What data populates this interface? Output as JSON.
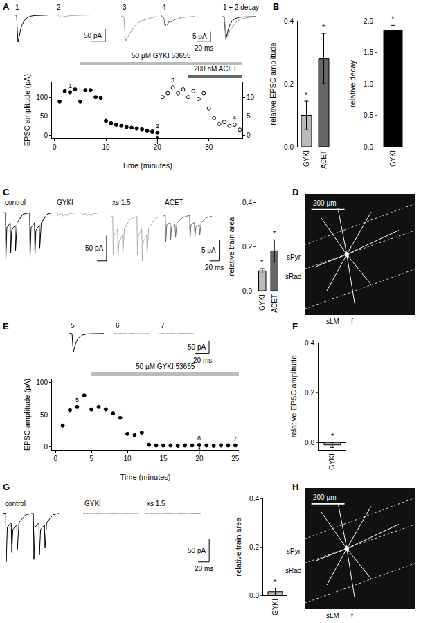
{
  "chart_data": [
    {
      "type": "line",
      "panel": "A",
      "title": "1",
      "x": [
        0,
        2,
        4,
        5,
        6,
        7,
        8,
        10,
        12,
        15,
        20,
        25,
        30,
        40,
        50
      ],
      "values": [
        0,
        0,
        0,
        -60,
        -105,
        -95,
        -80,
        -55,
        -38,
        -22,
        -9,
        -4,
        -2,
        -1,
        0
      ],
      "color": "#000000",
      "xlim": [
        0,
        50
      ],
      "ylim": [
        -110,
        10
      ],
      "tick_labels": false
    },
    {
      "type": "line",
      "panel": "A",
      "title": "2",
      "x": [
        0,
        2,
        4,
        5,
        6,
        7,
        8,
        10,
        12,
        15,
        20,
        25,
        30,
        40,
        50
      ],
      "values": [
        0,
        0,
        0,
        -3,
        -8,
        -9,
        -8,
        -7,
        -6,
        -5,
        -3,
        -2,
        -1,
        -0.5,
        0
      ],
      "color": "#aaaaaa",
      "xlim": [
        0,
        75
      ],
      "ylim": [
        -110,
        10
      ],
      "tick_labels": false,
      "scalebar": {
        "x": 20,
        "y": 50,
        "y_label": "50 pA"
      }
    },
    {
      "type": "line",
      "panel": "A",
      "title": "3",
      "x": [
        0,
        2,
        4,
        5,
        6,
        7,
        8,
        10,
        12,
        15,
        20,
        25,
        30,
        40,
        50
      ],
      "values": [
        0,
        0.3,
        -0.2,
        -5,
        -11,
        -12,
        -11,
        -10,
        -8.5,
        -7,
        -4.5,
        -3,
        -2,
        -1,
        0
      ],
      "color": "#999999",
      "xlim": [
        0,
        50
      ],
      "ylim": [
        -13,
        2
      ],
      "tick_labels": false
    },
    {
      "type": "line",
      "panel": "A",
      "title": "4",
      "x": [
        0,
        2,
        4,
        5,
        6,
        7,
        8,
        10,
        12,
        15,
        20,
        25,
        30,
        40,
        50
      ],
      "values": [
        0,
        0.4,
        -0.3,
        -1.5,
        -4,
        -4.5,
        -3.5,
        -4,
        -2.5,
        -2.8,
        -1.5,
        -1.2,
        -0.4,
        -0.3,
        0
      ],
      "color": "#666666",
      "xlim": [
        0,
        75
      ],
      "ylim": [
        -13,
        2
      ],
      "tick_labels": false,
      "scalebar": {
        "x": 20,
        "y": 5,
        "y_label": "5 pA",
        "x_label": "20 ms"
      }
    },
    {
      "type": "line",
      "panel": "A",
      "title": "1 + 2 decay",
      "x": [
        0,
        2,
        4,
        5,
        6,
        7,
        8,
        10,
        12,
        15,
        20,
        25,
        30,
        40,
        50
      ],
      "series": [
        {
          "color": "#000000",
          "values": [
            0,
            0,
            0,
            -6,
            -11,
            -10,
            -8.5,
            -6,
            -4,
            -2.3,
            -1,
            -0.4,
            -0.2,
            -0.1,
            0
          ]
        },
        {
          "color": "#999999",
          "values": [
            0,
            0.2,
            -0.1,
            -4,
            -11,
            -10.5,
            -10,
            -8.5,
            -7,
            -5.5,
            -3,
            -1.8,
            -1,
            -0.4,
            0
          ]
        }
      ],
      "xlim": [
        0,
        50
      ],
      "ylim": [
        -13,
        2
      ],
      "tick_labels": false
    },
    {
      "type": "scatter",
      "panel": "A",
      "x_label": "Time (minutes)",
      "y_label": "EPSC amplitude (pA)",
      "xlim": [
        -0.5,
        36.5
      ],
      "xticks": [
        0,
        10,
        20,
        30
      ],
      "ylim": [
        -8,
        140
      ],
      "yticks": [
        0,
        50,
        100
      ],
      "y2lim": [
        -0.8,
        14
      ],
      "y2ticks": [
        0,
        5,
        10
      ],
      "series": [
        {
          "x": [
            1,
            2,
            3,
            4,
            5,
            6,
            7,
            8,
            9,
            10,
            11,
            12,
            13,
            14,
            15,
            16,
            17,
            18,
            19,
            20
          ],
          "values": [
            88,
            115,
            112,
            120,
            88,
            118,
            118,
            100,
            98,
            38,
            32,
            28,
            25,
            22,
            20,
            18,
            16,
            12,
            10,
            7
          ],
          "marker": "filled",
          "color": "#000000"
        },
        {
          "axis": "y2",
          "x": [
            21,
            22,
            23,
            24,
            25,
            26,
            27,
            28,
            29,
            30,
            31,
            32,
            33,
            34,
            35,
            36
          ],
          "values": [
            10,
            11,
            12.5,
            11,
            12,
            10,
            11.5,
            9.5,
            11,
            7,
            4.5,
            3,
            3.5,
            2.5,
            2.8,
            1.5
          ],
          "marker": "open",
          "color": "#000000"
        }
      ],
      "annotations": [
        {
          "x": 3,
          "y": 112,
          "text": "1"
        },
        {
          "x": 20,
          "y": 7,
          "text": "2"
        },
        {
          "x": 23,
          "y": 12.5,
          "text": "3",
          "axis": "y2"
        },
        {
          "x": 35,
          "y": 2.8,
          "text": "4",
          "axis": "y2"
        }
      ],
      "arrows": [
        {
          "x": 20,
          "y": 0
        }
      ],
      "drug_bars": [
        {
          "label": "50 µM GYKI 53655",
          "start": 5,
          "end": 36.5,
          "color": "#bbbbbb"
        },
        {
          "label": "200 nM ACET",
          "start": 26,
          "end": 36.5,
          "color": "#666666"
        }
      ]
    },
    {
      "type": "bar",
      "panel": "B",
      "y_label": "relative EPSC amplitude",
      "categories": [
        "GYKI",
        "ACET"
      ],
      "values": [
        0.1,
        0.28
      ],
      "errors": [
        0.045,
        0.08
      ],
      "colors": [
        "#bbbbbb",
        "#666666"
      ],
      "ylim": [
        0,
        0.4
      ],
      "yticks": [
        {
          "value": 0,
          "label": "0.0"
        },
        0.2,
        0.4
      ],
      "significance": [
        "*",
        "*"
      ]
    },
    {
      "type": "bar",
      "panel": "B",
      "y_label": "relative decay",
      "categories": [
        "GYKI"
      ],
      "values": [
        1.85
      ],
      "errors": [
        0.08
      ],
      "colors": [
        "#000000"
      ],
      "ylim": [
        0,
        2
      ],
      "yticks": [
        {
          "value": 0,
          "label": "0.0"
        },
        0.5,
        {
          "value": 1,
          "label": "1.0"
        },
        1.5,
        {
          "value": 2,
          "label": "2.0"
        }
      ],
      "significance": [
        "*"
      ]
    },
    {
      "type": "line",
      "panel": "C",
      "title": "control",
      "x": [
        0,
        4,
        5,
        7,
        14,
        15,
        17,
        24,
        25,
        28,
        40,
        54,
        55,
        57,
        64,
        65,
        67,
        74,
        75,
        78,
        90,
        100
      ],
      "values": [
        0,
        0,
        -95,
        -30,
        -20,
        -80,
        -35,
        -25,
        -75,
        -20,
        -3,
        0,
        -90,
        -30,
        -20,
        -85,
        -35,
        -25,
        -70,
        -20,
        -3,
        0
      ],
      "color": "#000000",
      "xlim": [
        0,
        100
      ],
      "ylim": [
        -100,
        10
      ],
      "tick_labels": false
    },
    {
      "type": "line",
      "panel": "C",
      "title": "GYKI",
      "x": [
        0,
        4,
        5,
        7,
        14,
        15,
        17,
        24,
        25,
        28,
        40,
        54,
        55,
        57,
        64,
        65,
        67,
        74,
        75,
        78,
        90,
        100
      ],
      "values": [
        0,
        0,
        -6,
        -3,
        -2,
        -7,
        -4,
        -3,
        -6,
        -2,
        -0.5,
        0,
        -6,
        -3,
        -2,
        -7,
        -4,
        -3,
        -6,
        -2,
        -0.5,
        0
      ],
      "color": "#aaaaaa",
      "xlim": [
        0,
        110
      ],
      "ylim": [
        -100,
        10
      ],
      "tick_labels": false,
      "scalebar": {
        "x": 20,
        "y": 50,
        "y_label": "50 pA"
      }
    },
    {
      "type": "line",
      "panel": "C",
      "title": "xs 1.5",
      "x": [
        0,
        4,
        5,
        7,
        14,
        15,
        17,
        24,
        25,
        28,
        40,
        54,
        55,
        57,
        64,
        65,
        67,
        74,
        75,
        78,
        90,
        100
      ],
      "values": [
        0,
        0,
        -9,
        -4.5,
        -3,
        -10,
        -6,
        -4.5,
        -9,
        -3,
        -0.7,
        0,
        -9,
        -4.5,
        -3,
        -10.5,
        -6,
        -4.5,
        -9,
        -3,
        -0.7,
        0
      ],
      "color": "#aaaaaa",
      "xlim": [
        0,
        100
      ],
      "ylim": [
        -11,
        2
      ],
      "tick_labels": false
    },
    {
      "type": "line",
      "panel": "C",
      "title": "ACET",
      "x": [
        0,
        4,
        5,
        7,
        14,
        15,
        17,
        24,
        25,
        28,
        40,
        54,
        55,
        57,
        64,
        65,
        67,
        74,
        75,
        78,
        90,
        100
      ],
      "values": [
        0,
        0.3,
        -6,
        -2,
        -1.5,
        -5.5,
        -2.5,
        -2,
        -5,
        -1.5,
        -0.3,
        0.2,
        -5.5,
        -2,
        -1.5,
        -5,
        -2.5,
        -2,
        -4.5,
        -1.5,
        -0.3,
        0
      ],
      "color": "#666666",
      "xlim": [
        0,
        120
      ],
      "ylim": [
        -11,
        2
      ],
      "tick_labels": false,
      "scalebar": {
        "x": 20,
        "y": 5,
        "y_label": "5 pA",
        "x_label": "20 ms"
      }
    },
    {
      "type": "bar",
      "panel": "C",
      "y_label": "relative train area",
      "categories": [
        "GYKI",
        "ACET"
      ],
      "values": [
        0.09,
        0.18
      ],
      "errors": [
        0.01,
        0.05
      ],
      "colors": [
        "#bbbbbb",
        "#666666"
      ],
      "ylim": [
        0,
        0.4
      ],
      "yticks": [
        {
          "value": 0,
          "label": "0.0"
        },
        0.2,
        0.4
      ],
      "significance": [
        "*",
        "*"
      ]
    },
    {
      "type": "image",
      "panel": "D",
      "scale_label": "200 µm",
      "labels": [
        "sPyr",
        "sRad",
        "sLM",
        "f"
      ]
    },
    {
      "type": "line",
      "panel": "E",
      "title": "5",
      "x": [
        0,
        2,
        4,
        5,
        6,
        7,
        8,
        10,
        12,
        15,
        20,
        25,
        30,
        40,
        50
      ],
      "values": [
        0,
        0,
        0,
        -40,
        -70,
        -60,
        -48,
        -32,
        -22,
        -13,
        -5,
        -2,
        -1,
        -0.5,
        0
      ],
      "color": "#000000",
      "xlim": [
        0,
        50
      ],
      "ylim": [
        -80,
        10
      ],
      "tick_labels": false
    },
    {
      "type": "line",
      "panel": "E",
      "title": "6",
      "x": [
        0,
        2,
        4,
        5,
        6,
        7,
        8,
        10,
        12,
        15,
        20,
        25,
        30,
        40,
        50
      ],
      "values": [
        0,
        1,
        -1,
        0.5,
        -1.5,
        1,
        -0.5,
        1,
        -1,
        0.5,
        -1,
        1,
        -0.5,
        0.5,
        0
      ],
      "color": "#aaaaaa",
      "xlim": [
        0,
        50
      ],
      "ylim": [
        -80,
        10
      ],
      "tick_labels": false
    },
    {
      "type": "line",
      "panel": "E",
      "title": "7",
      "x": [
        0,
        2,
        4,
        5,
        6,
        7,
        8,
        10,
        12,
        15,
        20,
        25,
        30,
        40,
        50
      ],
      "values": [
        0,
        -1,
        1,
        -0.5,
        1,
        -1.5,
        0.5,
        -1,
        1,
        -0.5,
        1,
        -1,
        0.5,
        -0.5,
        0
      ],
      "color": "#aaaaaa",
      "xlim": [
        0,
        75
      ],
      "ylim": [
        -80,
        10
      ],
      "tick_labels": false,
      "scalebar": {
        "x": 20,
        "y": 50,
        "y_label": "50 pA",
        "x_label": "20 ms"
      }
    },
    {
      "type": "scatter",
      "panel": "E",
      "x_label": "Time (minutes)",
      "y_label": "EPSC amplitude (pA)",
      "xlim": [
        -0.5,
        25.5
      ],
      "xticks": [
        0,
        5,
        10,
        15,
        20,
        25
      ],
      "ylim": [
        -5,
        105
      ],
      "yticks": [
        0,
        50,
        100
      ],
      "series": [
        {
          "x": [
            1,
            2,
            3,
            4,
            5,
            6,
            7,
            8,
            9,
            10,
            11,
            12,
            13,
            14,
            15,
            16,
            17,
            18,
            19,
            20,
            21,
            22,
            23,
            24,
            25
          ],
          "values": [
            33,
            57,
            62,
            80,
            58,
            62,
            58,
            52,
            45,
            20,
            18,
            22,
            3,
            2,
            2,
            2,
            1.5,
            2,
            2,
            2.5,
            2,
            1.5,
            2,
            2,
            2
          ],
          "marker": "filled",
          "color": "#000000"
        }
      ],
      "annotations": [
        {
          "x": 3,
          "y": 62,
          "text": "5"
        },
        {
          "x": 20,
          "y": 2.5,
          "text": "6"
        },
        {
          "x": 25,
          "y": 2,
          "text": "7"
        }
      ],
      "arrows": [
        {
          "x": 20,
          "y": 0
        }
      ],
      "drug_bars": [
        {
          "label": "50 µM GYKI 53655",
          "start": 5,
          "end": 25.5,
          "color": "#bbbbbb"
        }
      ]
    },
    {
      "type": "bar",
      "panel": "F",
      "y_label": "relative EPSC amplitude",
      "categories": [
        "GYKI"
      ],
      "values": [
        -0.01
      ],
      "errors": [
        0.01
      ],
      "colors": [
        "#bbbbbb"
      ],
      "ylim": [
        -0.03,
        0.4
      ],
      "yticks": [
        {
          "value": 0,
          "label": "0.0"
        },
        0.2,
        0.4
      ],
      "significance": [
        "*"
      ]
    },
    {
      "type": "line",
      "panel": "G",
      "title": "control",
      "x": [
        0,
        4,
        5,
        7,
        14,
        15,
        17,
        24,
        25,
        28,
        40,
        54,
        55,
        57,
        64,
        65,
        67,
        74,
        75,
        78,
        90,
        100
      ],
      "values": [
        0,
        0,
        -105,
        -30,
        -20,
        -85,
        -35,
        -25,
        -80,
        -20,
        -3,
        0,
        -100,
        -30,
        -20,
        -90,
        -35,
        -25,
        -75,
        -20,
        -3,
        0
      ],
      "color": "#000000",
      "xlim": [
        0,
        100
      ],
      "ylim": [
        -110,
        10
      ],
      "tick_labels": false
    },
    {
      "type": "line",
      "panel": "G",
      "title": "GYKI",
      "x": [
        0,
        4,
        5,
        7,
        14,
        15,
        17,
        24,
        25,
        28,
        40,
        54,
        55,
        57,
        64,
        65,
        67,
        74,
        75,
        78,
        90,
        100
      ],
      "values": [
        0,
        0.5,
        -0.5,
        0.3,
        -0.3,
        0.5,
        -0.5,
        0.3,
        -0.3,
        0.5,
        -0.5,
        0.3,
        -0.3,
        0.5,
        -0.5,
        0.3,
        -0.3,
        0.5,
        -0.5,
        0.3,
        -0.3,
        0
      ],
      "color": "#aaaaaa",
      "xlim": [
        0,
        100
      ],
      "ylim": [
        -110,
        10
      ],
      "tick_labels": false
    },
    {
      "type": "line",
      "panel": "G",
      "title": "xs 1.5",
      "x": [
        0,
        4,
        5,
        7,
        14,
        15,
        17,
        24,
        25,
        28,
        40,
        54,
        55,
        57,
        64,
        65,
        67,
        74,
        75,
        78,
        90,
        100
      ],
      "values": [
        0,
        -0.5,
        0.5,
        -0.3,
        0.3,
        -0.5,
        0.5,
        -0.3,
        0.3,
        -0.5,
        0.5,
        -0.3,
        0.3,
        -0.5,
        0.5,
        -0.3,
        0.3,
        -0.5,
        0.5,
        -0.3,
        0.3,
        0
      ],
      "color": "#aaaaaa",
      "xlim": [
        0,
        120
      ],
      "ylim": [
        -110,
        10
      ],
      "tick_labels": false,
      "scalebar": {
        "x": 20,
        "y": 50,
        "y_label": "50 pA",
        "x_label": "20 ms"
      }
    },
    {
      "type": "bar",
      "panel": "G",
      "y_label": "relative train area",
      "categories": [
        "GYKI"
      ],
      "values": [
        0.015
      ],
      "errors": [
        0.015
      ],
      "colors": [
        "#bbbbbb"
      ],
      "ylim": [
        0,
        0.4
      ],
      "yticks": [
        {
          "value": 0,
          "label": "0.0"
        },
        0.2,
        0.4
      ],
      "significance": [
        "*"
      ]
    },
    {
      "type": "image",
      "panel": "H",
      "scale_label": "200 µm",
      "labels": [
        "sPyr",
        "sRad",
        "sLM",
        "f"
      ]
    }
  ]
}
